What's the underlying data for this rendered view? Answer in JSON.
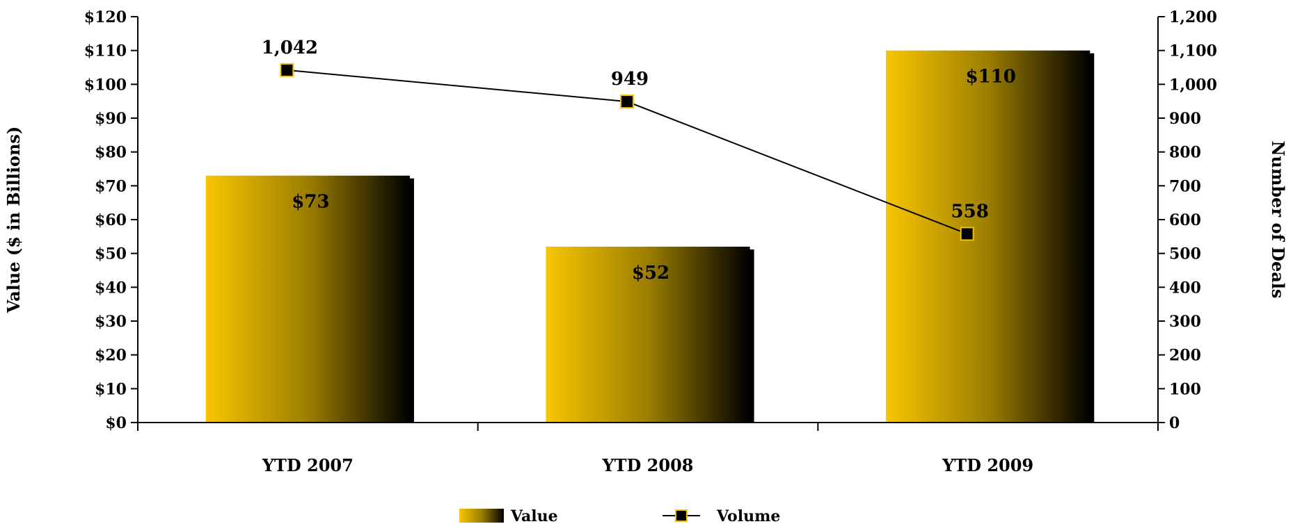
{
  "chart_data": {
    "type": "bar",
    "categories": [
      "YTD 2007",
      "YTD 2008",
      "YTD 2009"
    ],
    "series": [
      {
        "name": "Value",
        "type": "bar",
        "axis": "left",
        "values": [
          73,
          52,
          110
        ],
        "labels": [
          "$73",
          "$52",
          "$110"
        ]
      },
      {
        "name": "Volume",
        "type": "line",
        "axis": "right",
        "values": [
          1042,
          949,
          558
        ],
        "labels": [
          "1,042",
          "949",
          "558"
        ]
      }
    ],
    "ylabel": "Value ($ in Billions)",
    "y2label": "Number of Deals",
    "ylim": [
      0,
      120
    ],
    "y2lim": [
      0,
      1200
    ],
    "yticks": [
      "$0",
      "$10",
      "$20",
      "$30",
      "$40",
      "$50",
      "$60",
      "$70",
      "$80",
      "$90",
      "$100",
      "$110",
      "$120"
    ],
    "y2ticks": [
      "0",
      "100",
      "200",
      "300",
      "400",
      "500",
      "600",
      "700",
      "800",
      "900",
      "1,000",
      "1,100",
      "1,200"
    ],
    "grid": false,
    "legend_position": "bottom-center",
    "colors": {
      "bar_light": "#f7c600",
      "bar_dark": "#000000",
      "marker_fill": "#000000",
      "marker_border": "#f2c300",
      "line": "#000000"
    }
  }
}
